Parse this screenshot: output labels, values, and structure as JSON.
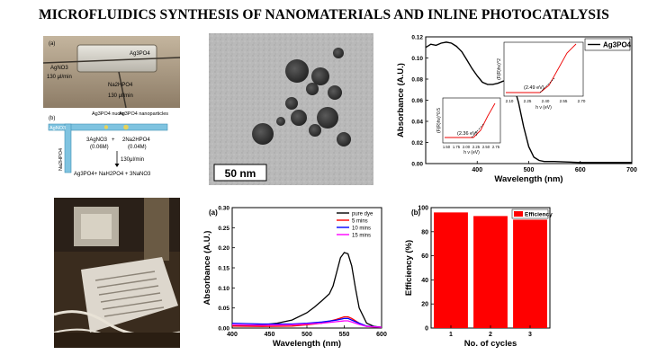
{
  "title": "MICROFLUIDICS SYNTHESIS OF NANOMATERIALS AND INLINE PHOTOCATALYSIS",
  "device_photo": {
    "label_a": "(a)",
    "chip_label": "Ag3PO4",
    "agno3_label": "AgNO3",
    "agno3_rate": "130 μl/min",
    "na_label": "Na2HPO4",
    "na_rate": "130 μl/min"
  },
  "schematic": {
    "label_b": "(b)",
    "inlet_label": "AgNO3",
    "nuclei_label": "Ag3PO4 nuclei",
    "nanoparticles_label": "Ag3PO4 nanoparticles",
    "reactant_a": "3AgNO3",
    "reactant_a_conc": "(0.06M)",
    "plus": "+",
    "reactant_b": "2Na2HPO4",
    "reactant_b_conc": "(0.04M)",
    "side_label": "Na2HPO4",
    "flow_rate": "130μl/min",
    "products": "Ag3PO4+ NaH2PO4 + 3NaNO3"
  },
  "tem": {
    "scale_bar": "50 nm"
  },
  "chart_data": [
    {
      "type": "line",
      "xlabel": "Wavelength (nm)",
      "ylabel": "Absorbance (A.U.)",
      "xlim": [
        300,
        700
      ],
      "ylim": [
        0,
        0.12
      ],
      "xticks": [
        400,
        500,
        600,
        700
      ],
      "yticks": [
        0.0,
        0.02,
        0.04,
        0.06,
        0.08,
        0.1,
        0.12
      ],
      "grid": false,
      "legend": "top-right",
      "series": [
        {
          "name": "Ag3PO4",
          "color": "#000000",
          "x": [
            300,
            310,
            320,
            330,
            340,
            350,
            360,
            370,
            380,
            390,
            400,
            410,
            420,
            430,
            440,
            450,
            460,
            470,
            480,
            490,
            500,
            510,
            520,
            530,
            550,
            600,
            650,
            700
          ],
          "values": [
            0.11,
            0.113,
            0.112,
            0.114,
            0.115,
            0.114,
            0.111,
            0.106,
            0.098,
            0.09,
            0.083,
            0.077,
            0.075,
            0.075,
            0.076,
            0.078,
            0.079,
            0.075,
            0.058,
            0.035,
            0.016,
            0.006,
            0.003,
            0.002,
            0.002,
            0.001,
            0.001,
            0.001
          ]
        }
      ],
      "insets": [
        {
          "xlabel": "h ν (eV)",
          "ylabel": "(F(R)hν)^2",
          "annotation": "(2.49 eV)",
          "xticks": [
            "2.10",
            "2.25",
            "2.40",
            "2.55",
            "2.70"
          ]
        },
        {
          "xlabel": "h ν (eV)",
          "ylabel": "(F(R)hν)^0.5",
          "annotation": "(2.36 eV)",
          "xticks": [
            "1.50",
            "1.75",
            "2.00",
            "2.25",
            "2.50",
            "2.75"
          ]
        }
      ]
    },
    {
      "type": "line",
      "panel_label": "(a)",
      "xlabel": "Wavelength (nm)",
      "ylabel": "Absorbance (A.U.)",
      "xlim": [
        400,
        600
      ],
      "ylim": [
        0,
        0.3
      ],
      "xticks": [
        400,
        450,
        500,
        550,
        600
      ],
      "yticks": [
        0.0,
        0.05,
        0.1,
        0.15,
        0.2,
        0.25,
        0.3
      ],
      "grid": false,
      "legend": "top-right",
      "series": [
        {
          "name": "pure dye",
          "color": "#000000",
          "x": [
            400,
            420,
            440,
            460,
            480,
            500,
            510,
            520,
            530,
            535,
            540,
            545,
            550,
            555,
            560,
            565,
            570,
            580,
            590,
            600
          ],
          "values": [
            0.005,
            0.006,
            0.008,
            0.012,
            0.02,
            0.038,
            0.052,
            0.068,
            0.085,
            0.105,
            0.14,
            0.175,
            0.188,
            0.185,
            0.155,
            0.1,
            0.05,
            0.012,
            0.004,
            0.002
          ]
        },
        {
          "name": "5 mins",
          "color": "#ff0000",
          "x": [
            400,
            440,
            480,
            500,
            520,
            540,
            550,
            555,
            560,
            570,
            580,
            600
          ],
          "values": [
            0.005,
            0.004,
            0.005,
            0.008,
            0.012,
            0.022,
            0.028,
            0.028,
            0.024,
            0.012,
            0.004,
            0.002
          ]
        },
        {
          "name": "10 mins",
          "color": "#0000ff",
          "x": [
            400,
            440,
            480,
            500,
            520,
            540,
            550,
            555,
            560,
            570,
            580,
            600
          ],
          "values": [
            0.012,
            0.01,
            0.01,
            0.012,
            0.015,
            0.02,
            0.024,
            0.024,
            0.02,
            0.012,
            0.005,
            0.002
          ]
        },
        {
          "name": "15 mins",
          "color": "#ff00ff",
          "x": [
            400,
            440,
            480,
            500,
            520,
            540,
            550,
            555,
            560,
            570,
            580,
            600
          ],
          "values": [
            0.008,
            0.007,
            0.008,
            0.01,
            0.012,
            0.016,
            0.018,
            0.018,
            0.015,
            0.009,
            0.004,
            0.002
          ]
        }
      ]
    },
    {
      "type": "bar",
      "panel_label": "(b)",
      "xlabel": "No. of cycles",
      "ylabel": "Efficiency (%)",
      "categories": [
        "1",
        "2",
        "3"
      ],
      "ylim": [
        0,
        100
      ],
      "yticks": [
        0,
        20,
        40,
        60,
        80,
        100
      ],
      "grid": false,
      "legend": "top-right",
      "series": [
        {
          "name": "Efficiency",
          "color": "#ff0000",
          "values": [
            96,
            93,
            90
          ]
        }
      ]
    }
  ]
}
